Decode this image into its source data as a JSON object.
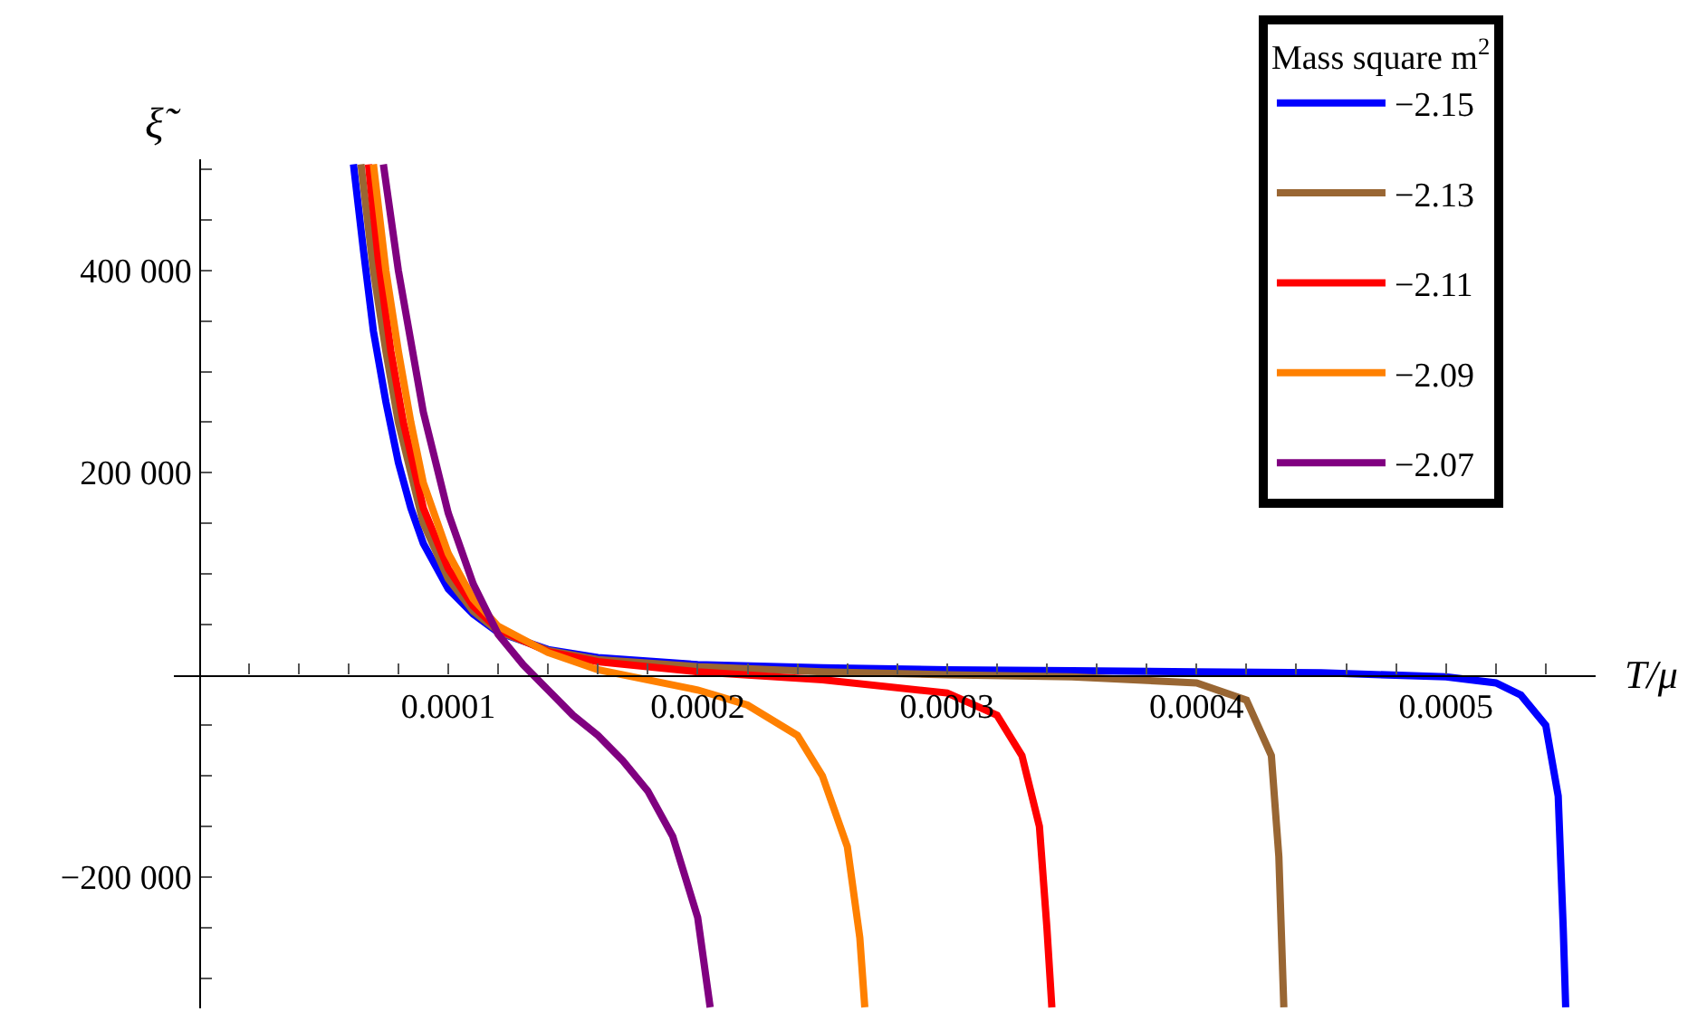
{
  "chart_data": {
    "type": "line",
    "xlabel": "T/μ",
    "ylabel": "ξ̃",
    "legend_title": "Mass square m$^{2}$",
    "xlim": [
      -1e-05,
      0.00056
    ],
    "ylim": [
      -330000,
      510000
    ],
    "xticks": [
      {
        "value": 2e-05,
        "label": null
      },
      {
        "value": 4e-05,
        "label": null
      },
      {
        "value": 6e-05,
        "label": null
      },
      {
        "value": 8e-05,
        "label": null
      },
      0.0001,
      {
        "value": 0.00012,
        "label": null
      },
      {
        "value": 0.00014,
        "label": null
      },
      {
        "value": 0.00016,
        "label": null
      },
      {
        "value": 0.00018,
        "label": null
      },
      0.0002,
      {
        "value": 0.00022,
        "label": null
      },
      {
        "value": 0.00024,
        "label": null
      },
      {
        "value": 0.00026,
        "label": null
      },
      {
        "value": 0.00028,
        "label": null
      },
      0.0003,
      {
        "value": 0.00032,
        "label": null
      },
      {
        "value": 0.00034,
        "label": null
      },
      {
        "value": 0.00036,
        "label": null
      },
      {
        "value": 0.00038,
        "label": null
      },
      0.0004,
      {
        "value": 0.00042,
        "label": null
      },
      {
        "value": 0.00044,
        "label": null
      },
      {
        "value": 0.00046,
        "label": null
      },
      {
        "value": 0.00048,
        "label": null
      },
      0.0005,
      {
        "value": 0.00052,
        "label": null
      },
      {
        "value": 0.00054,
        "label": null
      }
    ],
    "yticks": [
      {
        "value": -300000,
        "label": null
      },
      {
        "value": -250000,
        "label": null
      },
      {
        "value": -200000,
        "label": "−200 000"
      },
      {
        "value": -150000,
        "label": null
      },
      {
        "value": -100000,
        "label": null
      },
      {
        "value": -50000,
        "label": null
      },
      {
        "value": 50000,
        "label": null
      },
      {
        "value": 100000,
        "label": null
      },
      {
        "value": 150000,
        "label": null
      },
      {
        "value": 200000,
        "label": "200 000"
      },
      {
        "value": 250000,
        "label": null
      },
      {
        "value": 300000,
        "label": null
      },
      {
        "value": 350000,
        "label": null
      },
      {
        "value": 400000,
        "label": "400 000"
      },
      {
        "value": 450000,
        "label": null
      },
      {
        "value": 500000,
        "label": null
      }
    ],
    "legend": "top right",
    "marker": "none",
    "line_style": "solid",
    "series": [
      {
        "name": "−2.15",
        "color": "#0000ff",
        "x": [
          6.2e-05,
          6.6e-05,
          7e-05,
          7.5e-05,
          8e-05,
          8.5e-05,
          9e-05,
          0.0001,
          0.00011,
          0.00012,
          0.00014,
          0.00016,
          0.0002,
          0.00025,
          0.0003,
          0.00035,
          0.0004,
          0.00045,
          0.0005,
          0.00052,
          0.00053,
          0.00054,
          0.000545,
          0.000547,
          0.000548
        ],
        "values": [
          505000,
          420000,
          340000,
          270000,
          210000,
          165000,
          130000,
          85000,
          60000,
          42000,
          25000,
          17000,
          10000,
          7000,
          5000,
          4000,
          3000,
          2000,
          -2000,
          -8000,
          -20000,
          -50000,
          -120000,
          -250000,
          -329000
        ]
      },
      {
        "name": "−2.13",
        "color": "#996633",
        "x": [
          6.5e-05,
          7e-05,
          7.5e-05,
          8e-05,
          9e-05,
          0.0001,
          0.00011,
          0.00012,
          0.00014,
          0.00016,
          0.0002,
          0.00025,
          0.0003,
          0.00035,
          0.0004,
          0.00042,
          0.00043,
          0.000433,
          0.000435
        ],
        "values": [
          505000,
          400000,
          320000,
          250000,
          150000,
          95000,
          63000,
          43000,
          24000,
          15000,
          8000,
          3000,
          0,
          -2000,
          -8000,
          -25000,
          -80000,
          -180000,
          -329000
        ]
      },
      {
        "name": "−2.11",
        "color": "#ff0000",
        "x": [
          6.8e-05,
          7.2e-05,
          7.7e-05,
          8.2e-05,
          9e-05,
          0.0001,
          0.00011,
          0.00012,
          0.00014,
          0.00016,
          0.0002,
          0.00025,
          0.0003,
          0.00032,
          0.00033,
          0.000337,
          0.00034,
          0.000342
        ],
        "values": [
          505000,
          410000,
          320000,
          250000,
          165000,
          105000,
          68000,
          45000,
          23000,
          13000,
          3000,
          -5000,
          -18000,
          -40000,
          -80000,
          -150000,
          -250000,
          -329000
        ]
      },
      {
        "name": "−2.09",
        "color": "#ff8000",
        "x": [
          7e-05,
          7.5e-05,
          8e-05,
          8.5e-05,
          9e-05,
          0.0001,
          0.00011,
          0.00012,
          0.00014,
          0.00016,
          0.00018,
          0.0002,
          0.00022,
          0.00024,
          0.00025,
          0.00026,
          0.000265,
          0.000267
        ],
        "values": [
          505000,
          400000,
          320000,
          250000,
          190000,
          120000,
          75000,
          48000,
          22000,
          5000,
          -5000,
          -15000,
          -30000,
          -60000,
          -100000,
          -170000,
          -260000,
          -329000
        ]
      },
      {
        "name": "−2.07",
        "color": "#800080",
        "x": [
          7.4e-05,
          8e-05,
          9e-05,
          0.0001,
          0.00011,
          0.00012,
          0.00013,
          0.00014,
          0.00015,
          0.00016,
          0.00017,
          0.00018,
          0.00019,
          0.0002,
          0.000205
        ],
        "values": [
          505000,
          400000,
          260000,
          160000,
          90000,
          40000,
          10000,
          -15000,
          -40000,
          -60000,
          -85000,
          -115000,
          -160000,
          -240000,
          -329000
        ]
      }
    ]
  }
}
